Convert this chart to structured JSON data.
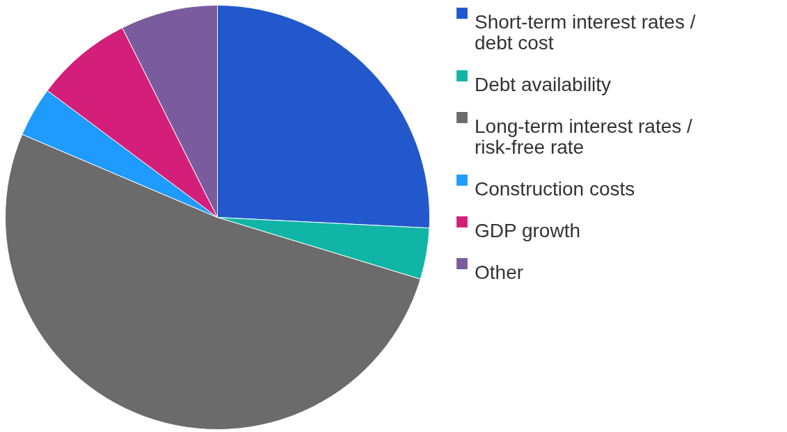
{
  "chart_data": {
    "type": "pie",
    "categories": [
      "Short-term interest rates / debt cost",
      "Debt availability",
      "Long-term interest rates / risk-free rate",
      "Construction costs",
      "GDP growth",
      "Other"
    ],
    "values": [
      25.8,
      3.9,
      51.7,
      3.8,
      7.4,
      7.4
    ],
    "colors": [
      "#2258cc",
      "#10b5a6",
      "#6b6b6b",
      "#1f9bff",
      "#d41f7a",
      "#7a5c9e"
    ],
    "legend": "right"
  }
}
